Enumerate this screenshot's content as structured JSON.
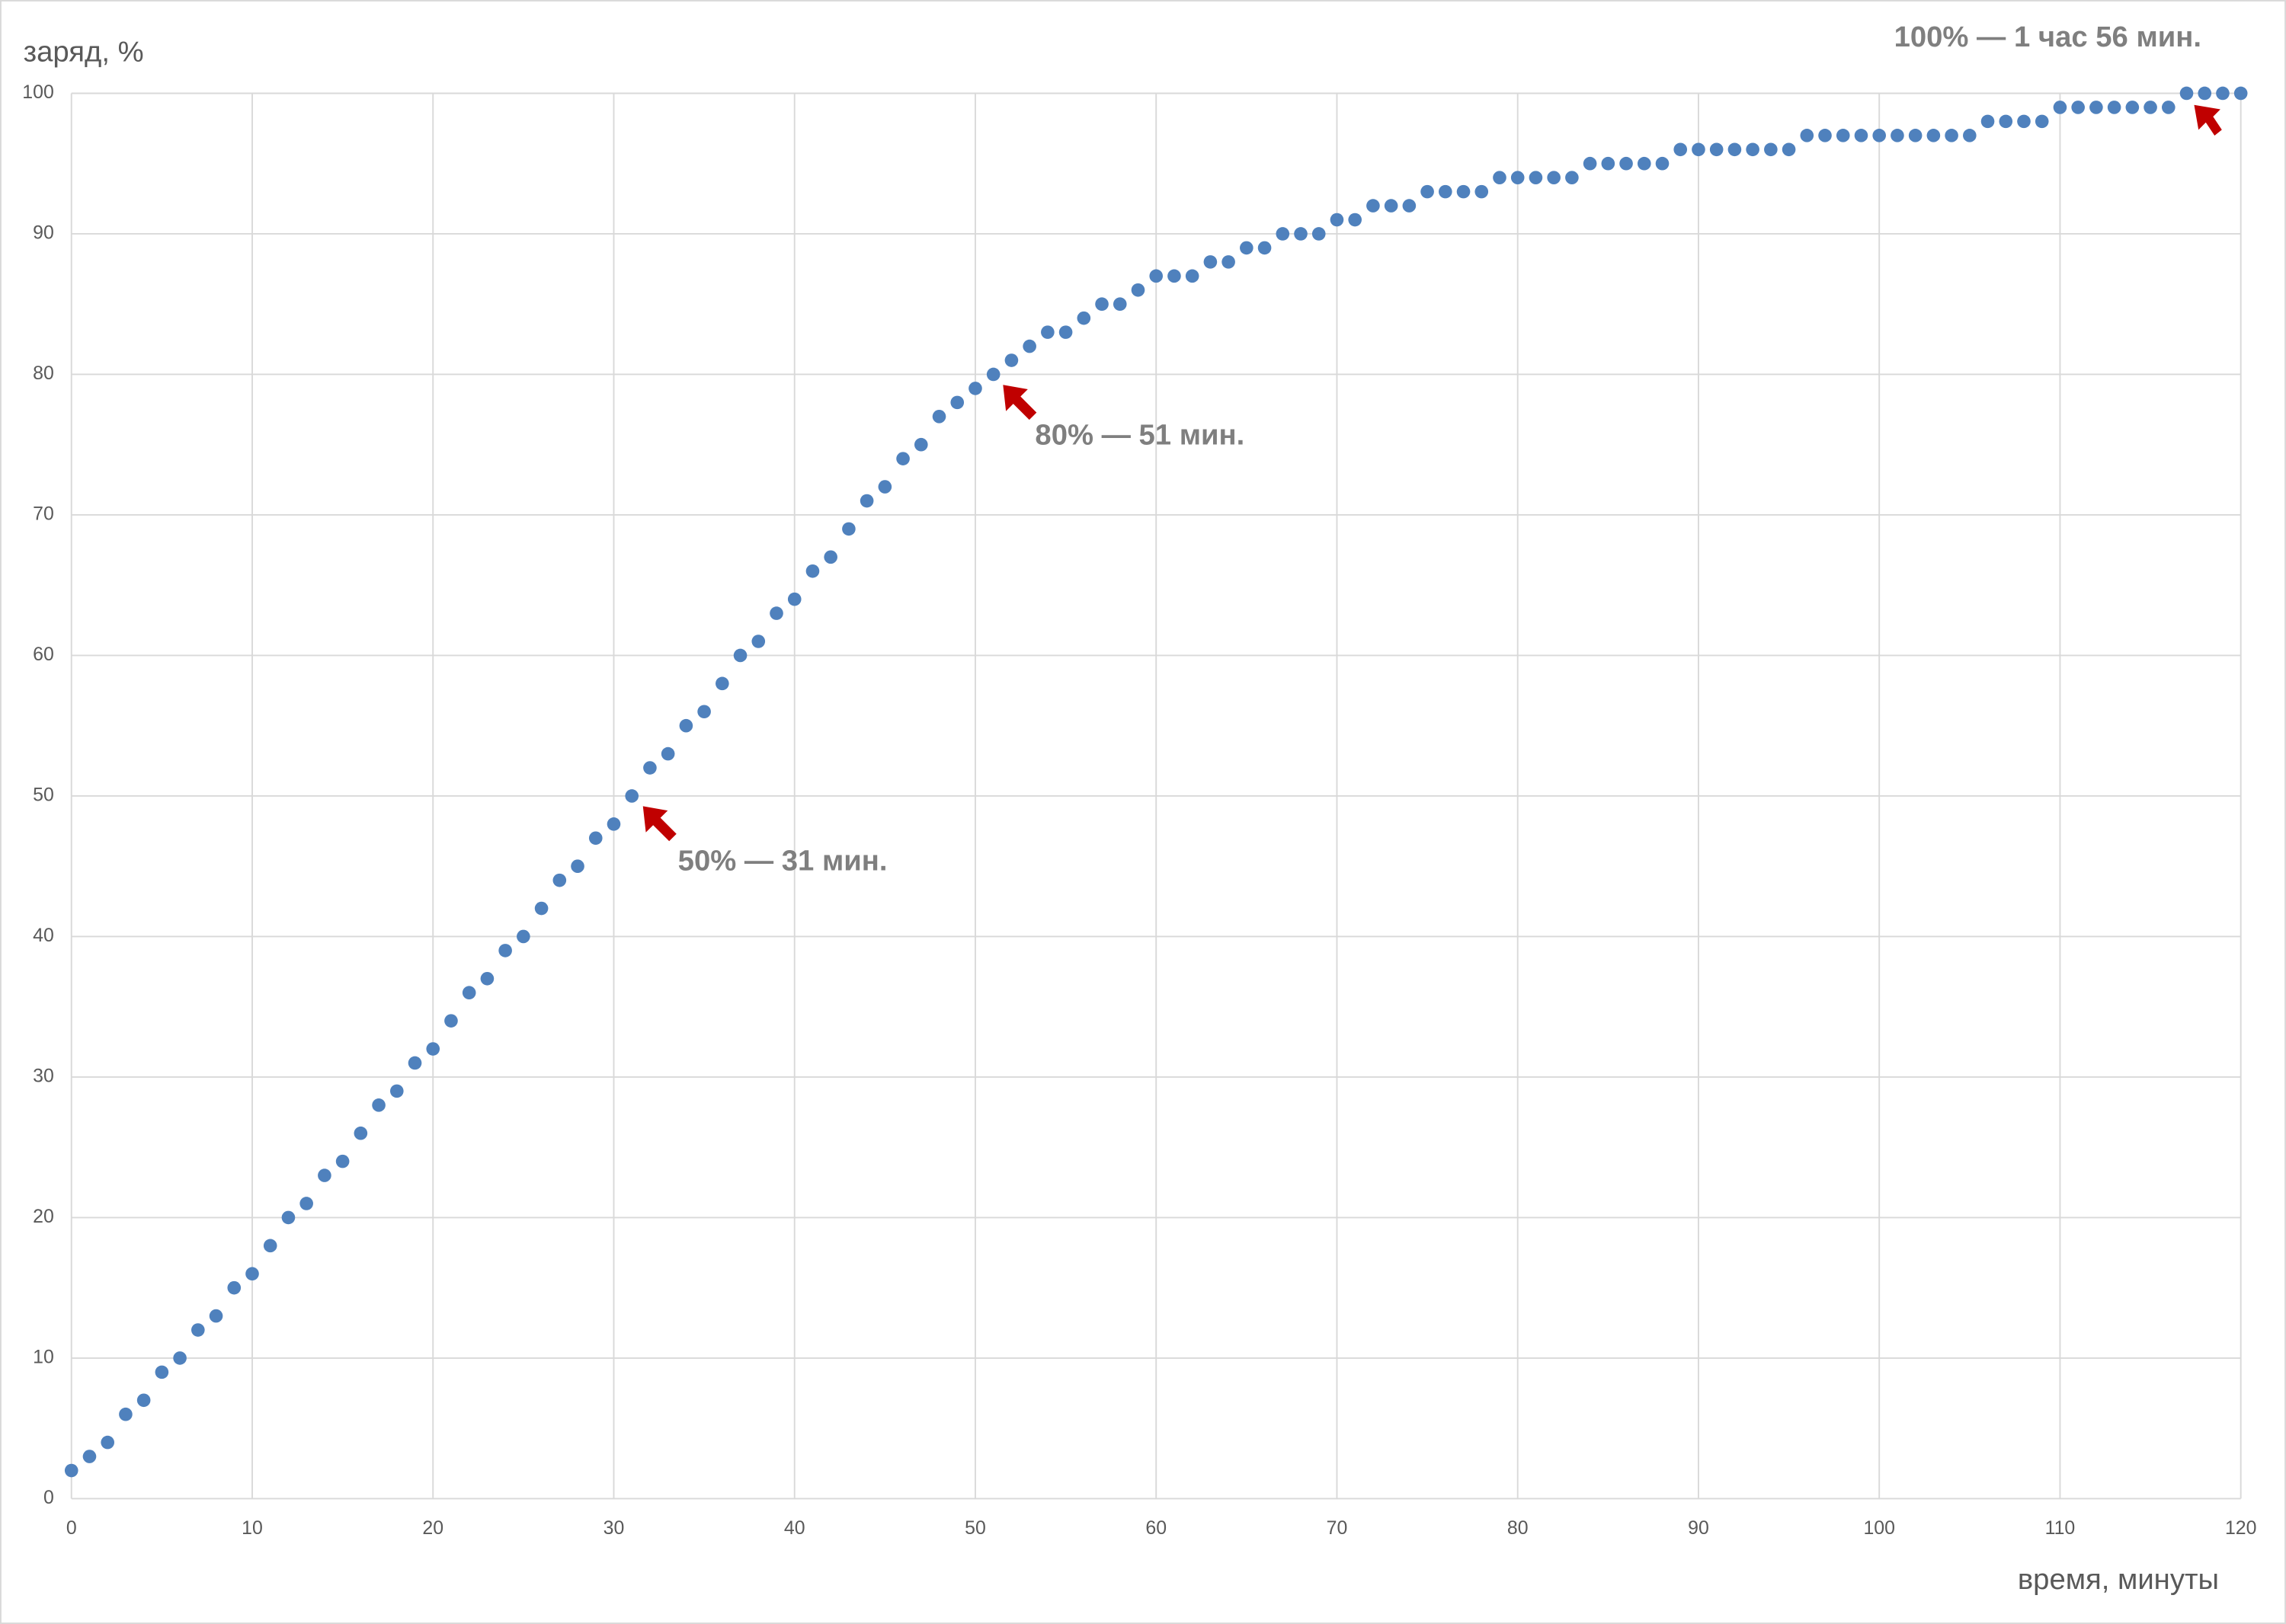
{
  "chart_data": {
    "type": "scatter",
    "y_label": "заряд, %",
    "x_label": "время, минуты",
    "annotations": [
      "50% — 31 мин.",
      "80% — 51 мин.",
      "100% — 1 час 56 мин."
    ],
    "color": "#4f81bd",
    "grid": true,
    "xlim": [
      0,
      120
    ],
    "ylim": [
      0,
      100
    ],
    "xticks": [
      0,
      10,
      20,
      30,
      40,
      50,
      60,
      70,
      80,
      90,
      100,
      110,
      120
    ],
    "yticks": [
      0,
      10,
      20,
      30,
      40,
      50,
      60,
      70,
      80,
      90,
      100
    ],
    "x": [
      0,
      1,
      2,
      3,
      4,
      5,
      6,
      7,
      8,
      9,
      10,
      11,
      12,
      13,
      14,
      15,
      16,
      17,
      18,
      19,
      20,
      21,
      22,
      23,
      24,
      25,
      26,
      27,
      28,
      29,
      30,
      31,
      32,
      33,
      34,
      35,
      36,
      37,
      38,
      39,
      40,
      41,
      42,
      43,
      44,
      45,
      46,
      47,
      48,
      49,
      50,
      51,
      52,
      53,
      54,
      55,
      56,
      57,
      58,
      59,
      60,
      61,
      62,
      63,
      64,
      65,
      66,
      67,
      68,
      69,
      70,
      71,
      72,
      73,
      74,
      75,
      76,
      77,
      78,
      79,
      80,
      81,
      82,
      83,
      84,
      85,
      86,
      87,
      88,
      89,
      90,
      91,
      92,
      93,
      94,
      95,
      96,
      97,
      98,
      99,
      100,
      101,
      102,
      103,
      104,
      105,
      106,
      107,
      108,
      109,
      110,
      111,
      112,
      113,
      114,
      115,
      116,
      117,
      118,
      119,
      120
    ],
    "values": [
      2,
      3,
      4,
      6,
      7,
      9,
      10,
      12,
      13,
      15,
      16,
      18,
      20,
      21,
      23,
      24,
      26,
      28,
      29,
      31,
      32,
      34,
      36,
      37,
      39,
      40,
      42,
      44,
      45,
      47,
      48,
      50,
      52,
      53,
      55,
      56,
      58,
      60,
      61,
      63,
      64,
      66,
      67,
      69,
      71,
      72,
      74,
      75,
      77,
      78,
      79,
      80,
      81,
      82,
      83,
      83,
      84,
      85,
      85,
      86,
      87,
      87,
      87,
      88,
      88,
      89,
      89,
      90,
      90,
      90,
      91,
      91,
      92,
      92,
      92,
      93,
      93,
      93,
      93,
      94,
      94,
      94,
      94,
      94,
      95,
      95,
      95,
      95,
      95,
      96,
      96,
      96,
      96,
      96,
      96,
      96,
      97,
      97,
      97,
      97,
      97,
      97,
      97,
      97,
      97,
      97,
      98,
      98,
      98,
      98,
      99,
      99,
      99,
      99,
      99,
      99,
      99,
      100,
      100,
      100,
      100
    ]
  }
}
